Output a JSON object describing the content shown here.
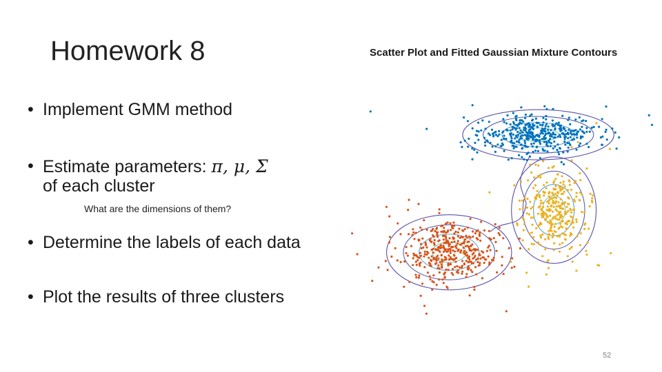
{
  "slide": {
    "title": "Homework 8",
    "bullets": [
      {
        "text": "Implement GMM method"
      },
      {
        "text": "Estimate parameters: ",
        "math": "π, μ, Σ",
        "line2": "of each cluster"
      },
      {
        "text": "Determine the labels of each data"
      },
      {
        "text": "Plot the results of three clusters"
      }
    ],
    "subnote": "What are the dimensions of them?",
    "bullet_glyph": "•",
    "page_number": "52"
  },
  "chart_data": {
    "type": "scatter",
    "title": "Scatter Plot and Fitted Gaussian Mixture Contours",
    "xlabel": "",
    "ylabel": "",
    "grid": false,
    "legend": "none",
    "xlim": [
      -4,
      4
    ],
    "ylim": [
      -4,
      4
    ],
    "clusters": [
      {
        "color": "#0072BD",
        "mean": [
          0.9,
          2.5
        ],
        "sd": [
          0.75,
          0.32
        ],
        "n": 420
      },
      {
        "color": "#EDB120",
        "mean": [
          1.3,
          0.0
        ],
        "sd": [
          0.42,
          0.68
        ],
        "n": 340
      },
      {
        "color": "#D95319",
        "mean": [
          -1.4,
          -1.4
        ],
        "sd": [
          0.62,
          0.48
        ],
        "n": 420
      }
    ],
    "contour_colors": [
      "#5b5fb0",
      "#5f9fc9",
      "#79c6b4"
    ],
    "contour_stroke": "#5a4fa8"
  }
}
